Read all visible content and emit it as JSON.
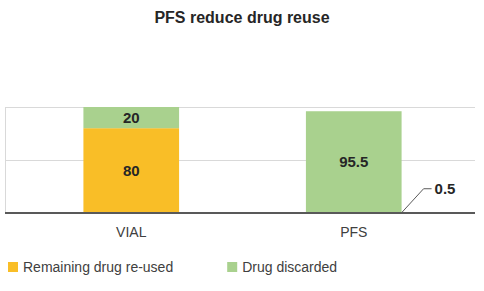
{
  "chart_data": {
    "type": "bar",
    "title": "PFS reduce drug reuse",
    "categories": [
      "VIAL",
      "PFS"
    ],
    "series": [
      {
        "name": "Remaining drug re-used",
        "color": "#F9BE27",
        "values": [
          80,
          0.5
        ]
      },
      {
        "name": "Drug discarded",
        "color": "#A9D18E",
        "values": [
          20,
          95.5
        ]
      }
    ],
    "stacked": true,
    "data_labels": true,
    "ylim": [
      0,
      100
    ],
    "yticks": [
      0,
      50,
      100
    ],
    "grid": true,
    "tick_labels": "x",
    "legend": "bottom"
  }
}
